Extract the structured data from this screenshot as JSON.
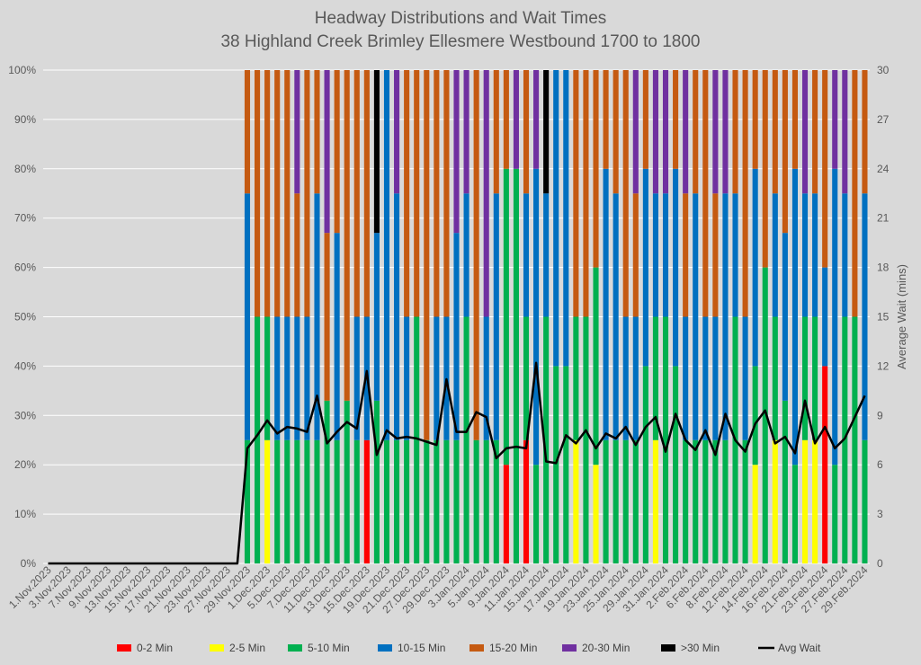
{
  "chart_data": {
    "type": "bar",
    "stacked": "percent",
    "title": "Headway Distributions and Wait Times",
    "subtitle": "38 Highland Creek  Brimley Ellesmere Westbound 1700 to 1800",
    "y2label": "Average Wait (mins)",
    "ylim": [
      0,
      100
    ],
    "y2lim": [
      0,
      30
    ],
    "yticks": [
      "0%",
      "10%",
      "20%",
      "30%",
      "40%",
      "50%",
      "60%",
      "70%",
      "80%",
      "90%",
      "100%"
    ],
    "y2ticks": [
      "0",
      "3",
      "6",
      "9",
      "12",
      "15",
      "18",
      "21",
      "24",
      "27",
      "30"
    ],
    "x_tick_labels": [
      "1.Nov.2023",
      "3.Nov.2023",
      "7.Nov.2023",
      "9.Nov.2023",
      "13.Nov.2023",
      "15.Nov.2023",
      "17.Nov.2023",
      "21.Nov.2023",
      "23.Nov.2023",
      "27.Nov.2023",
      "29.Nov.2023",
      "1.Dec.2023",
      "5.Dec.2023",
      "7.Dec.2023",
      "11.Dec.2023",
      "13.Dec.2023",
      "15.Dec.2023",
      "19.Dec.2023",
      "21.Dec.2023",
      "27.Dec.2023",
      "29.Dec.2023",
      "3.Jan.2024",
      "5.Jan.2024",
      "9.Jan.2024",
      "11.Jan.2024",
      "15.Jan.2024",
      "17.Jan.2024",
      "19.Jan.2024",
      "23.Jan.2024",
      "25.Jan.2024",
      "29.Jan.2024",
      "31.Jan.2024",
      "2.Feb.2024",
      "6.Feb.2024",
      "8.Feb.2024",
      "12.Feb.2024",
      "14.Feb.2024",
      "16.Feb.2024",
      "21.Feb.2024",
      "23.Feb.2024",
      "27.Feb.2024",
      "29.Feb.2024"
    ],
    "categories_count": 83,
    "legend_position": "bottom",
    "series": [
      {
        "name": "0-2 Min",
        "color": "#ff0000"
      },
      {
        "name": "2-5 Min",
        "color": "#ffff00"
      },
      {
        "name": "5-10 Min",
        "color": "#00b050"
      },
      {
        "name": "10-15 Min",
        "color": "#0070c0"
      },
      {
        "name": "15-20 Min",
        "color": "#c55a11"
      },
      {
        "name": "20-30 Min",
        "color": "#7030a0"
      },
      {
        "name": ">30 Min",
        "color": "#000000"
      }
    ],
    "line_series": {
      "name": "Avg Wait",
      "color": "#000000"
    },
    "stacks": [
      [
        0,
        0,
        0,
        0,
        0,
        0,
        0
      ],
      [
        0,
        0,
        0,
        0,
        0,
        0,
        0
      ],
      [
        0,
        0,
        0,
        0,
        0,
        0,
        0
      ],
      [
        0,
        0,
        0,
        0,
        0,
        0,
        0
      ],
      [
        0,
        0,
        0,
        0,
        0,
        0,
        0
      ],
      [
        0,
        0,
        0,
        0,
        0,
        0,
        0
      ],
      [
        0,
        0,
        0,
        0,
        0,
        0,
        0
      ],
      [
        0,
        0,
        0,
        0,
        0,
        0,
        0
      ],
      [
        0,
        0,
        0,
        0,
        0,
        0,
        0
      ],
      [
        0,
        0,
        0,
        0,
        0,
        0,
        0
      ],
      [
        0,
        0,
        0,
        0,
        0,
        0,
        0
      ],
      [
        0,
        0,
        0,
        0,
        0,
        0,
        0
      ],
      [
        0,
        0,
        0,
        0,
        0,
        0,
        0
      ],
      [
        0,
        0,
        0,
        0,
        0,
        0,
        0
      ],
      [
        0,
        0,
        0,
        0,
        0,
        0,
        0
      ],
      [
        0,
        0,
        0,
        0,
        0,
        0,
        0
      ],
      [
        0,
        0,
        0,
        0,
        0,
        0,
        0
      ],
      [
        0,
        0,
        0,
        0,
        0,
        0,
        0
      ],
      [
        0,
        0,
        0,
        0,
        0,
        0,
        0
      ],
      [
        0,
        0,
        0,
        0,
        0,
        0,
        0
      ],
      [
        0,
        0,
        25,
        50,
        25,
        0,
        0
      ],
      [
        0,
        0,
        50,
        0,
        50,
        0,
        0
      ],
      [
        0,
        25,
        25,
        0,
        50,
        0,
        0
      ],
      [
        0,
        0,
        25,
        25,
        50,
        0,
        0
      ],
      [
        0,
        0,
        25,
        25,
        50,
        0,
        0
      ],
      [
        0,
        0,
        25,
        25,
        25,
        25,
        0
      ],
      [
        0,
        0,
        25,
        25,
        50,
        0,
        0
      ],
      [
        0,
        0,
        25,
        50,
        25,
        0,
        0
      ],
      [
        0,
        0,
        33,
        0,
        34,
        33,
        0
      ],
      [
        0,
        0,
        25,
        42,
        33,
        0,
        0
      ],
      [
        0,
        0,
        33,
        0,
        67,
        0,
        0
      ],
      [
        0,
        0,
        25,
        25,
        50,
        0,
        0
      ],
      [
        25,
        0,
        0,
        25,
        50,
        0,
        0
      ],
      [
        0,
        0,
        33,
        34,
        0,
        0,
        33
      ],
      [
        0,
        0,
        25,
        75,
        0,
        0,
        0
      ],
      [
        0,
        0,
        25,
        50,
        0,
        25,
        0
      ],
      [
        0,
        0,
        25,
        25,
        50,
        0,
        0
      ],
      [
        0,
        0,
        50,
        0,
        50,
        0,
        0
      ],
      [
        0,
        0,
        25,
        0,
        75,
        0,
        0
      ],
      [
        0,
        0,
        25,
        25,
        50,
        0,
        0
      ],
      [
        0,
        0,
        25,
        25,
        50,
        0,
        0
      ],
      [
        0,
        0,
        25,
        42,
        0,
        33,
        0
      ],
      [
        0,
        0,
        50,
        25,
        0,
        25,
        0
      ],
      [
        0,
        0,
        25,
        0,
        75,
        0,
        0
      ],
      [
        0,
        0,
        25,
        25,
        0,
        50,
        0
      ],
      [
        0,
        0,
        25,
        50,
        25,
        0,
        0
      ],
      [
        20,
        0,
        60,
        0,
        20,
        0,
        0
      ],
      [
        0,
        0,
        80,
        0,
        0,
        20,
        0
      ],
      [
        25,
        0,
        25,
        25,
        25,
        0,
        0
      ],
      [
        0,
        0,
        20,
        60,
        0,
        20,
        0
      ],
      [
        0,
        0,
        50,
        25,
        0,
        0,
        25
      ],
      [
        0,
        0,
        40,
        60,
        0,
        0,
        0
      ],
      [
        0,
        0,
        40,
        60,
        0,
        0,
        0
      ],
      [
        0,
        25,
        25,
        0,
        50,
        0,
        0
      ],
      [
        0,
        0,
        50,
        0,
        50,
        0,
        0
      ],
      [
        0,
        20,
        40,
        0,
        40,
        0,
        0
      ],
      [
        0,
        0,
        25,
        55,
        20,
        0,
        0
      ],
      [
        0,
        0,
        25,
        50,
        25,
        0,
        0
      ],
      [
        0,
        0,
        25,
        25,
        50,
        0,
        0
      ],
      [
        0,
        0,
        25,
        25,
        25,
        25,
        0
      ],
      [
        0,
        0,
        40,
        40,
        20,
        0,
        0
      ],
      [
        0,
        25,
        25,
        25,
        0,
        25,
        0
      ],
      [
        0,
        0,
        50,
        25,
        0,
        25,
        0
      ],
      [
        0,
        0,
        40,
        40,
        20,
        0,
        0
      ],
      [
        0,
        0,
        25,
        25,
        25,
        25,
        0
      ],
      [
        0,
        0,
        25,
        50,
        25,
        0,
        0
      ],
      [
        0,
        0,
        25,
        25,
        50,
        0,
        0
      ],
      [
        0,
        0,
        25,
        25,
        25,
        25,
        0
      ],
      [
        0,
        0,
        25,
        50,
        0,
        25,
        0
      ],
      [
        0,
        0,
        50,
        25,
        25,
        0,
        0
      ],
      [
        0,
        0,
        25,
        25,
        50,
        0,
        0
      ],
      [
        0,
        20,
        20,
        40,
        20,
        0,
        0
      ],
      [
        0,
        0,
        60,
        0,
        40,
        0,
        0
      ],
      [
        0,
        25,
        25,
        25,
        25,
        0,
        0
      ],
      [
        0,
        0,
        33,
        34,
        33,
        0,
        0
      ],
      [
        0,
        0,
        20,
        60,
        20,
        0,
        0
      ],
      [
        0,
        25,
        25,
        25,
        0,
        25,
        0
      ],
      [
        0,
        25,
        25,
        25,
        25,
        0,
        0
      ],
      [
        40,
        0,
        0,
        20,
        40,
        0,
        0
      ],
      [
        0,
        0,
        20,
        60,
        0,
        20,
        0
      ],
      [
        0,
        0,
        50,
        25,
        0,
        25,
        0
      ],
      [
        0,
        0,
        50,
        0,
        50,
        0,
        0
      ],
      [
        0,
        0,
        25,
        50,
        25,
        0,
        0
      ]
    ],
    "avg_wait": [
      0,
      0,
      0,
      0,
      0,
      0,
      0,
      0,
      0,
      0,
      0,
      0,
      0,
      0,
      0,
      0,
      0,
      0,
      0,
      0,
      7.0,
      7.8,
      8.7,
      7.9,
      8.3,
      8.2,
      8.0,
      10.2,
      7.3,
      8.0,
      8.6,
      8.2,
      11.7,
      6.6,
      8.1,
      7.6,
      7.7,
      7.6,
      7.4,
      7.2,
      11.2,
      8.0,
      8.0,
      9.2,
      8.9,
      6.4,
      7.0,
      7.1,
      7.0,
      12.2,
      6.2,
      6.1,
      7.8,
      7.3,
      8.1,
      7.0,
      7.9,
      7.6,
      8.3,
      7.2,
      8.3,
      8.9,
      6.8,
      9.1,
      7.5,
      6.9,
      8.1,
      6.6,
      9.1,
      7.5,
      6.8,
      8.5,
      9.3,
      7.3,
      7.7,
      6.7,
      9.9,
      7.3,
      8.3,
      7.0,
      7.6,
      8.9,
      10.2
    ]
  }
}
